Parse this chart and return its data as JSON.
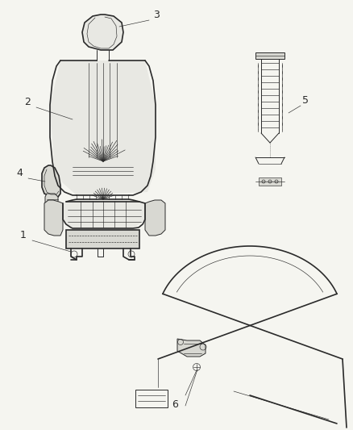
{
  "background_color": "#f5f5f0",
  "line_color": "#2a2a2a",
  "fig_width": 4.38,
  "fig_height": 5.33,
  "dpi": 100,
  "seat_outline_color": "#1a1a1a",
  "fill_light": "#e8e8e3",
  "fill_medium": "#d8d8d2",
  "fill_dark": "#c0c0ba"
}
